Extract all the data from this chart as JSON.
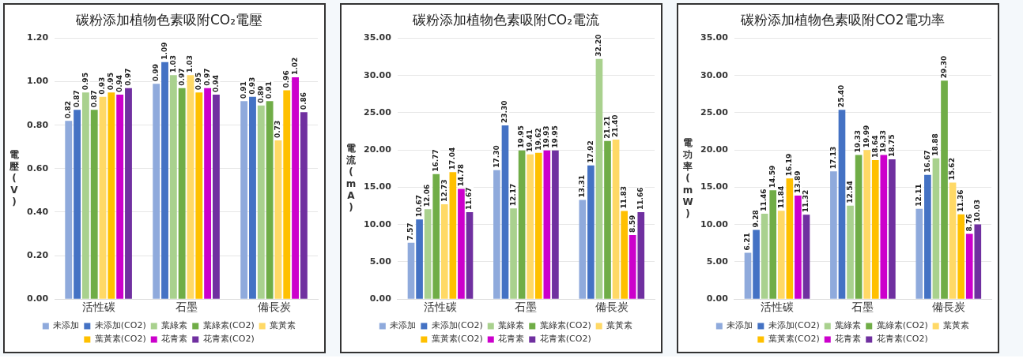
{
  "chart_data": [
    {
      "type": "bar",
      "title": "碳粉添加植物色素吸附CO₂電壓",
      "ylabel": "電壓(V)",
      "categories": [
        "活性碳",
        "石墨",
        "備長炭"
      ],
      "ylim": [
        0,
        1.2
      ],
      "yticks": [
        {
          "value": 0,
          "label": "0.00"
        },
        {
          "value": 0.2,
          "label": "0.20"
        },
        {
          "value": 0.4,
          "label": "0.40"
        },
        {
          "value": 0.6,
          "label": "0.60"
        },
        {
          "value": 0.8,
          "label": "0.80"
        },
        {
          "value": 1.0,
          "label": "1.00"
        },
        {
          "value": 1.2,
          "label": "1.20"
        }
      ],
      "grid": "y",
      "legend": "bottom",
      "series": [
        {
          "name": "未添加",
          "color": "#8faadc",
          "values": [
            0.82,
            0.99,
            0.91
          ],
          "value_labels": [
            "0.82",
            "0.99",
            "0.91"
          ]
        },
        {
          "name": "未添加(CO2)",
          "color": "#4472c4",
          "values": [
            0.87,
            1.09,
            0.93
          ],
          "value_labels": [
            "0.87",
            "1.09",
            "0.93"
          ]
        },
        {
          "name": "葉綠素",
          "color": "#a9d18e",
          "values": [
            0.95,
            1.03,
            0.89
          ],
          "value_labels": [
            "0.95",
            "1.03",
            "0.89"
          ]
        },
        {
          "name": "葉綠素(CO2)",
          "color": "#70ad47",
          "values": [
            0.87,
            0.97,
            0.91
          ],
          "value_labels": [
            "0.87",
            "0.97",
            "0.91"
          ]
        },
        {
          "name": "葉黃素",
          "color": "#ffd966",
          "values": [
            0.93,
            1.03,
            0.73
          ],
          "value_labels": [
            "0.93",
            "1.03",
            "0.73"
          ]
        },
        {
          "name": "葉黃素(CO2)",
          "color": "#ffc000",
          "values": [
            0.95,
            0.95,
            0.96
          ],
          "value_labels": [
            "0.95",
            "0.95",
            "0.96"
          ]
        },
        {
          "name": "花青素",
          "color": "#cc00cc",
          "values": [
            0.94,
            0.97,
            1.02
          ],
          "value_labels": [
            "0.94",
            "0.97",
            "1.02"
          ]
        },
        {
          "name": "花青素(CO2)",
          "color": "#7030a0",
          "values": [
            0.97,
            0.94,
            0.86
          ],
          "value_labels": [
            "0.97",
            "0.94",
            "0.86"
          ]
        }
      ]
    },
    {
      "type": "bar",
      "title": "碳粉添加植物色素吸附CO₂電流",
      "ylabel": "電流(mA)",
      "categories": [
        "活性碳",
        "石墨",
        "備長炭"
      ],
      "ylim": [
        0,
        35
      ],
      "yticks": [
        {
          "value": 0,
          "label": "0.00"
        },
        {
          "value": 5,
          "label": "5.00"
        },
        {
          "value": 10,
          "label": "10.00"
        },
        {
          "value": 15,
          "label": "15.00"
        },
        {
          "value": 20,
          "label": "20.00"
        },
        {
          "value": 25,
          "label": "25.00"
        },
        {
          "value": 30,
          "label": "30.00"
        },
        {
          "value": 35,
          "label": "35.00"
        }
      ],
      "grid": "y",
      "legend": "bottom",
      "series": [
        {
          "name": "未添加",
          "color": "#8faadc",
          "values": [
            7.57,
            17.3,
            13.31
          ],
          "value_labels": [
            "7.57",
            "17.30",
            "13.31"
          ]
        },
        {
          "name": "未添加(CO2)",
          "color": "#4472c4",
          "values": [
            10.67,
            23.3,
            17.92
          ],
          "value_labels": [
            "10.67",
            "23.30",
            "17.92"
          ]
        },
        {
          "name": "葉綠素",
          "color": "#a9d18e",
          "values": [
            12.06,
            12.17,
            32.2
          ],
          "value_labels": [
            "12.06",
            "12.17",
            "32.20"
          ]
        },
        {
          "name": "葉綠素(CO2)",
          "color": "#70ad47",
          "values": [
            16.77,
            19.95,
            21.21
          ],
          "value_labels": [
            "16.77",
            "19.95",
            "21.21"
          ]
        },
        {
          "name": "葉黃素",
          "color": "#ffd966",
          "values": [
            12.73,
            19.41,
            21.4
          ],
          "value_labels": [
            "12.73",
            "19.41",
            "21.40"
          ]
        },
        {
          "name": "葉黃素(CO2)",
          "color": "#ffc000",
          "values": [
            17.04,
            19.62,
            11.83
          ],
          "value_labels": [
            "17.04",
            "19.62",
            "11.83"
          ]
        },
        {
          "name": "花青素",
          "color": "#cc00cc",
          "values": [
            14.78,
            19.93,
            8.59
          ],
          "value_labels": [
            "14.78",
            "19.93",
            "8.59"
          ]
        },
        {
          "name": "花青素(CO2)",
          "color": "#7030a0",
          "values": [
            11.67,
            19.95,
            11.66
          ],
          "value_labels": [
            "11.67",
            "19.95",
            "11.66"
          ]
        }
      ]
    },
    {
      "type": "bar",
      "title": "碳粉添加植物色素吸附CO2電功率",
      "ylabel": "電功率(mW)",
      "categories": [
        "活性碳",
        "石墨",
        "備長炭"
      ],
      "ylim": [
        0,
        35
      ],
      "yticks": [
        {
          "value": 0,
          "label": "0.00"
        },
        {
          "value": 5,
          "label": "5.00"
        },
        {
          "value": 10,
          "label": "10.00"
        },
        {
          "value": 15,
          "label": "15.00"
        },
        {
          "value": 20,
          "label": "20.00"
        },
        {
          "value": 25,
          "label": "25.00"
        },
        {
          "value": 30,
          "label": "30.00"
        },
        {
          "value": 35,
          "label": "35.00"
        }
      ],
      "grid": "y",
      "legend": "bottom",
      "series": [
        {
          "name": "未添加",
          "color": "#8faadc",
          "values": [
            6.21,
            17.13,
            12.11
          ],
          "value_labels": [
            "6.21",
            "17.13",
            "12.11"
          ]
        },
        {
          "name": "未添加(CO2)",
          "color": "#4472c4",
          "values": [
            9.28,
            25.4,
            16.67
          ],
          "value_labels": [
            "9.28",
            "25.40",
            "16.67"
          ]
        },
        {
          "name": "葉綠素",
          "color": "#a9d18e",
          "values": [
            11.46,
            12.54,
            18.88
          ],
          "value_labels": [
            "11.46",
            "12.54",
            "18.88"
          ]
        },
        {
          "name": "葉綠素(CO2)",
          "color": "#70ad47",
          "values": [
            14.59,
            19.33,
            29.3
          ],
          "value_labels": [
            "14.59",
            "19.33",
            "29.30"
          ]
        },
        {
          "name": "葉黃素",
          "color": "#ffd966",
          "values": [
            11.84,
            19.99,
            15.62
          ],
          "value_labels": [
            "11.84",
            "19.99",
            "15.62"
          ]
        },
        {
          "name": "葉黃素(CO2)",
          "color": "#ffc000",
          "values": [
            16.19,
            18.64,
            11.36
          ],
          "value_labels": [
            "16.19",
            "18.64",
            "11.36"
          ]
        },
        {
          "name": "花青素",
          "color": "#cc00cc",
          "values": [
            13.89,
            19.33,
            8.76
          ],
          "value_labels": [
            "13.89",
            "19.33",
            "8.76"
          ]
        },
        {
          "name": "花青素(CO2)",
          "color": "#7030a0",
          "values": [
            11.32,
            18.75,
            10.03
          ],
          "value_labels": [
            "11.32",
            "18.75",
            "10.03"
          ]
        }
      ]
    }
  ]
}
